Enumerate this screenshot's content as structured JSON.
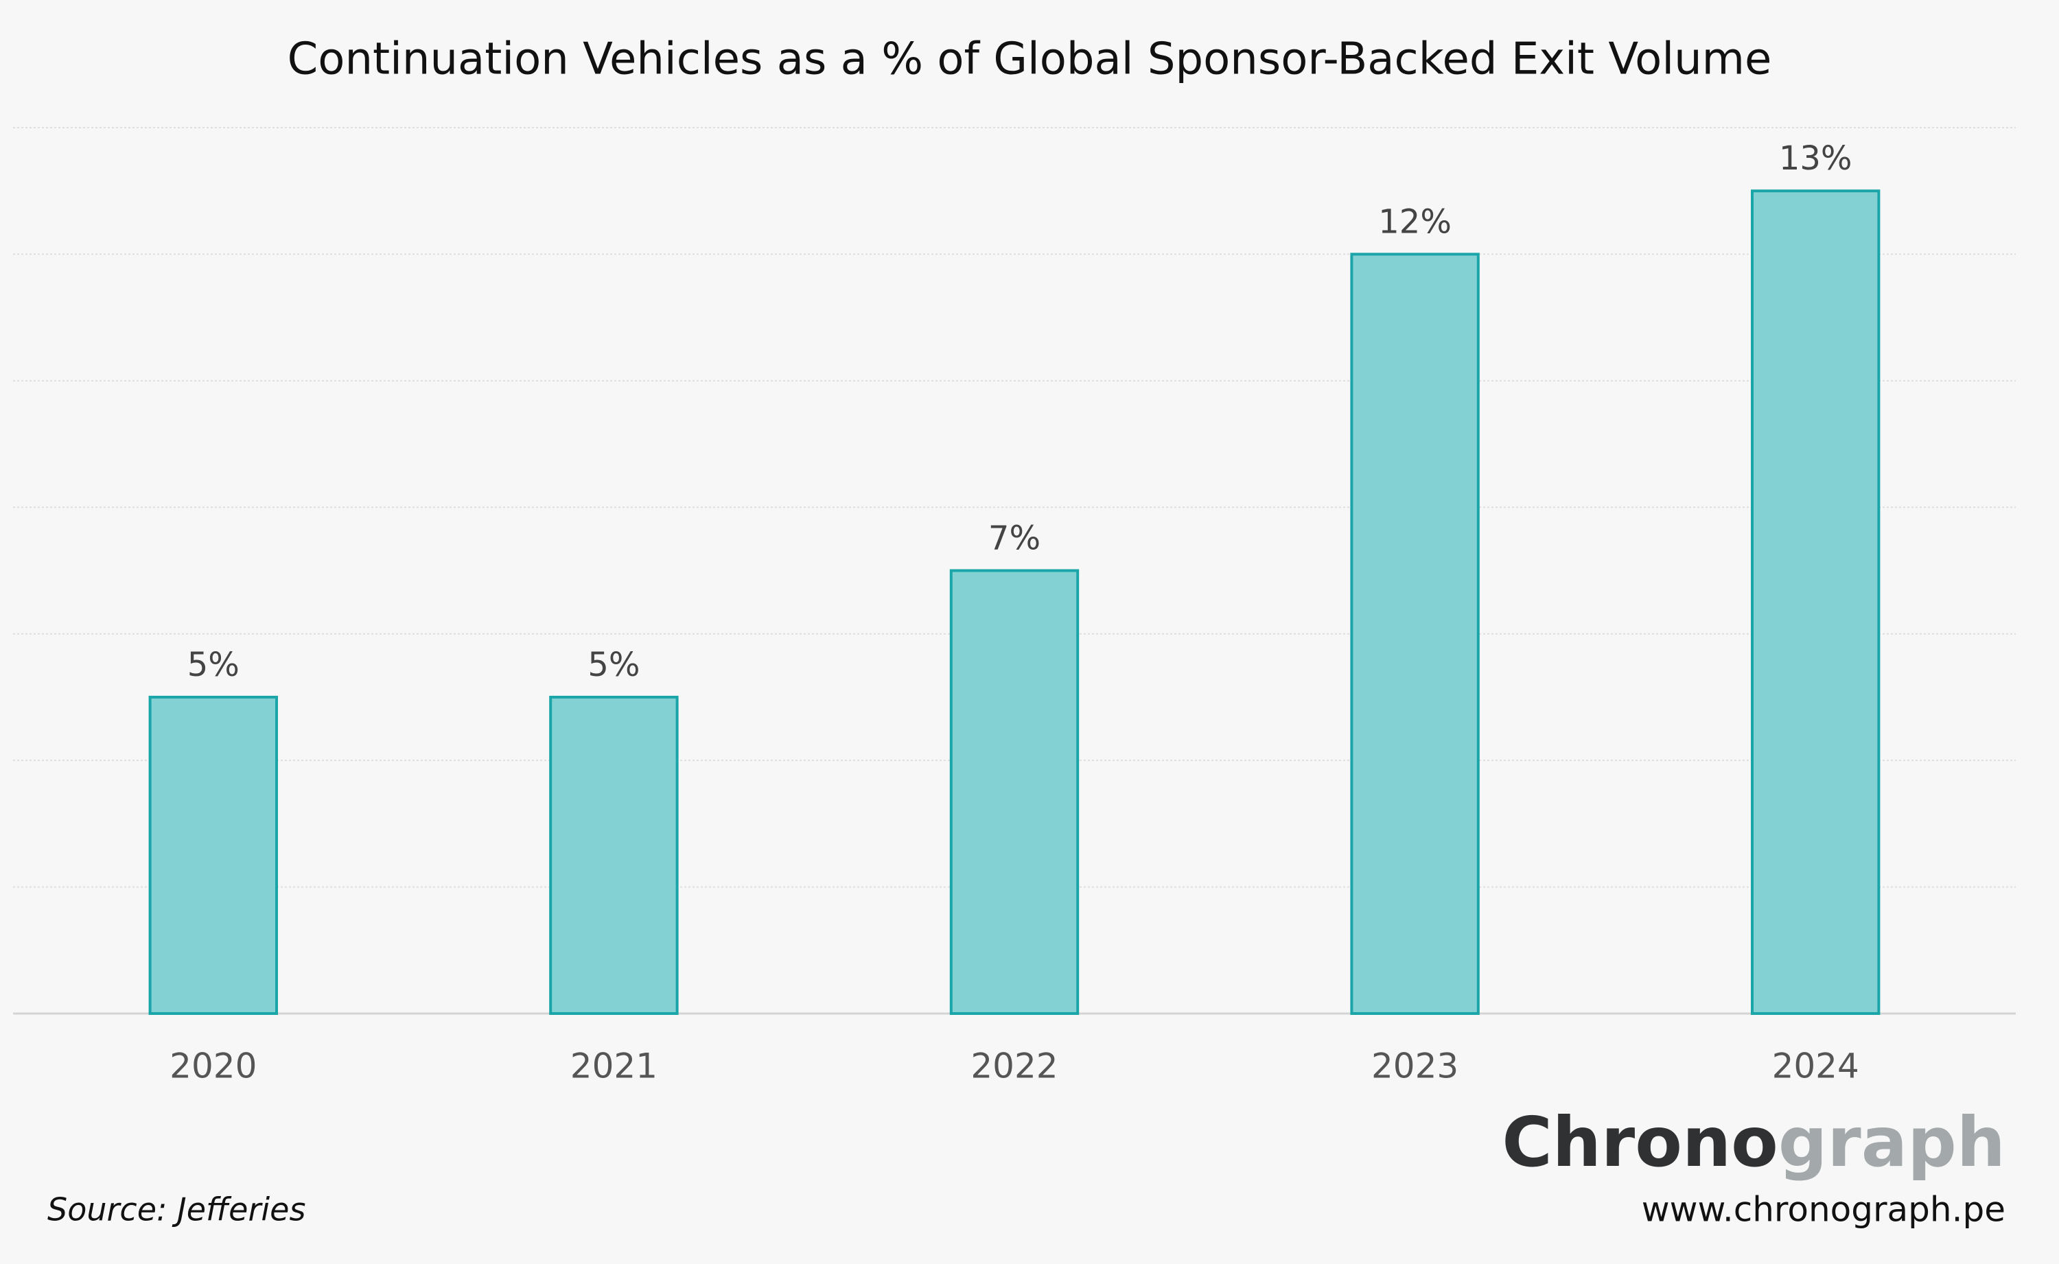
{
  "chart_data": {
    "type": "bar",
    "title": "Continuation Vehicles as a % of Global Sponsor-Backed Exit Volume",
    "categories": [
      "2020",
      "2021",
      "2022",
      "2023",
      "2024"
    ],
    "values": [
      5,
      5,
      7,
      12,
      13
    ],
    "value_labels": [
      "5%",
      "5%",
      "7%",
      "12%",
      "13%"
    ],
    "color": "#84d1d4",
    "edge_color": "#1aa5a8",
    "ylim": [
      0,
      14
    ],
    "yticks": [
      0,
      2,
      4,
      6,
      8,
      10,
      12,
      14
    ],
    "grid": true,
    "source": "Source: Jefferies",
    "logo": [
      "Chrono",
      "graph"
    ],
    "url": "www.chronograph.pe"
  }
}
